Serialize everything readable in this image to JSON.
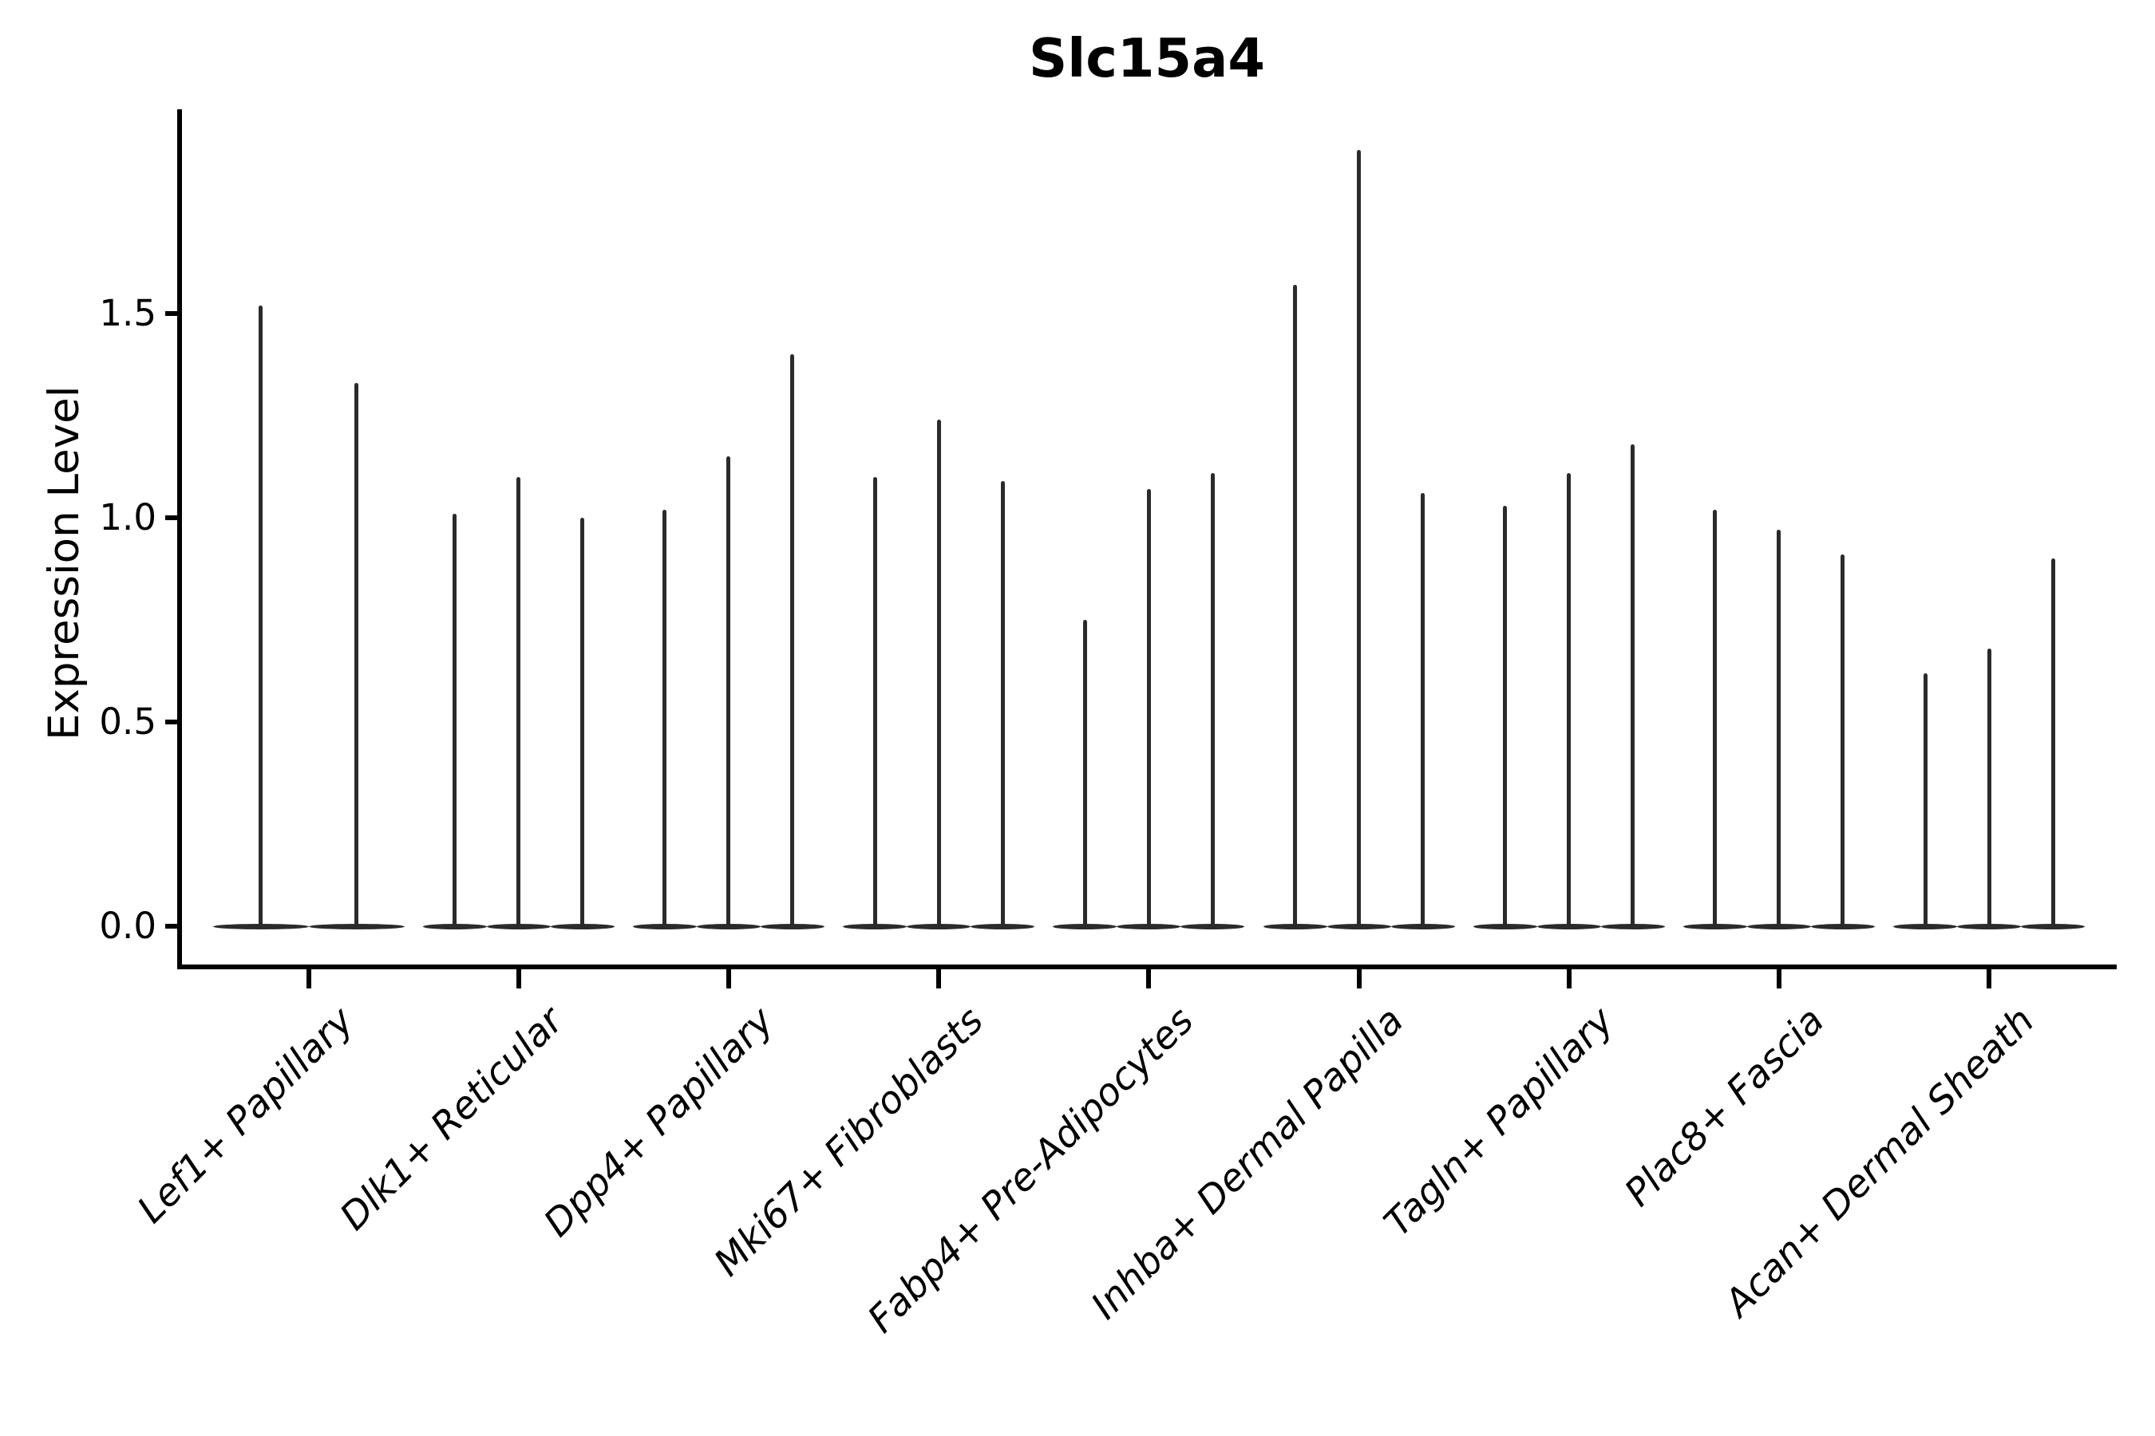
{
  "chart_data": {
    "type": "violin",
    "title": "Slc15a4",
    "ylabel": "Expression Level",
    "xlabel": "",
    "ylim": [
      0,
      2.0
    ],
    "ytick_values": [
      0.0,
      0.5,
      1.0,
      1.5
    ],
    "ytick_labels": [
      "0.0",
      "0.5",
      "1.0",
      "1.5"
    ],
    "grid": false,
    "legend": "none",
    "categories": [
      "Lef1+ Papillary",
      "Dlk1+ Reticular",
      "Dpp4+ Papillary",
      "Mki67+ Fibroblasts",
      "Fabp4+ Pre-Adipocytes",
      "Inhba+ Dermal Papilla",
      "Tagln+ Papillary",
      "Plac8+ Fascia",
      "Acan+ Dermal Sheath"
    ],
    "groups": [
      {
        "label": "Lef1+ Papillary",
        "violin_peaks": [
          1.52,
          1.33
        ]
      },
      {
        "label": "Dlk1+ Reticular",
        "violin_peaks": [
          1.01,
          1.1,
          1.0
        ]
      },
      {
        "label": "Dpp4+ Papillary",
        "violin_peaks": [
          1.02,
          1.15,
          1.4
        ]
      },
      {
        "label": "Mki67+ Fibroblasts",
        "violin_peaks": [
          1.1,
          1.24,
          1.09
        ]
      },
      {
        "label": "Fabp4+ Pre-Adipocytes",
        "violin_peaks": [
          0.75,
          1.07,
          1.11
        ]
      },
      {
        "label": "Inhba+ Dermal Papilla",
        "violin_peaks": [
          1.57,
          1.9,
          1.06
        ]
      },
      {
        "label": "Tagln+ Papillary",
        "violin_peaks": [
          1.03,
          1.11,
          1.18
        ]
      },
      {
        "label": "Plac8+ Fascia",
        "violin_peaks": [
          1.02,
          0.97,
          0.91
        ]
      },
      {
        "label": "Acan+ Dermal Sheath",
        "violin_peaks": [
          0.62,
          0.68,
          0.9
        ]
      }
    ],
    "style": {
      "violin_color": "#2b2b2b",
      "axis_color": "#000000",
      "background": "#ffffff",
      "x_labels_italic": true,
      "x_labels_rotation_deg": 45
    }
  }
}
